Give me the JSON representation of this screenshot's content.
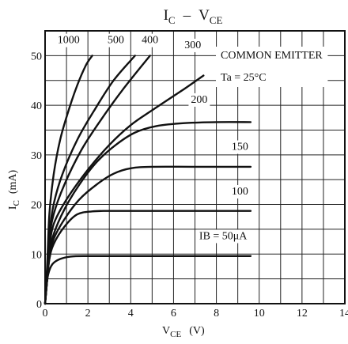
{
  "chart_data": {
    "type": "line",
    "title": "IC - VCE",
    "title_parts": {
      "i": "I",
      "c": "C",
      "dash": "–",
      "v": "V",
      "ce": "CE"
    },
    "xlabel": {
      "main": "V",
      "sub": "CE",
      "unit": "(V)"
    },
    "ylabel": {
      "main": "I",
      "sub": "C",
      "unit": "(mA)"
    },
    "xlim": [
      0,
      14
    ],
    "ylim": [
      0,
      55
    ],
    "x_ticks": [
      0,
      2,
      4,
      6,
      8,
      10,
      12,
      14
    ],
    "y_ticks": [
      0,
      10,
      20,
      30,
      40,
      50
    ],
    "x_tick_labels": [
      "0",
      "2",
      "4",
      "6",
      "8",
      "10",
      "12",
      "14"
    ],
    "y_tick_labels": [
      "0",
      "10",
      "20",
      "30",
      "40",
      "50"
    ],
    "grid": true,
    "annotations": {
      "line1": "COMMON EMITTER",
      "line2": "Ta = 25°C"
    },
    "series": [
      {
        "name": "1000",
        "label": "1000",
        "points": [
          [
            0,
            0
          ],
          [
            0.1,
            8
          ],
          [
            0.2,
            18
          ],
          [
            0.4,
            26
          ],
          [
            0.7,
            33
          ],
          [
            1.1,
            39
          ],
          [
            1.5,
            44
          ],
          [
            1.9,
            48
          ],
          [
            2.2,
            50
          ]
        ]
      },
      {
        "name": "500",
        "label": "500",
        "points": [
          [
            0,
            0
          ],
          [
            0.1,
            6
          ],
          [
            0.2,
            14
          ],
          [
            0.4,
            20
          ],
          [
            0.8,
            26
          ],
          [
            1.5,
            33
          ],
          [
            2.3,
            39
          ],
          [
            3.2,
            45
          ],
          [
            4.2,
            50
          ]
        ]
      },
      {
        "name": "400",
        "label": "400",
        "points": [
          [
            0,
            0
          ],
          [
            0.1,
            6
          ],
          [
            0.2,
            13
          ],
          [
            0.4,
            18
          ],
          [
            0.9,
            24
          ],
          [
            1.7,
            31
          ],
          [
            2.6,
            37
          ],
          [
            3.6,
            43
          ],
          [
            4.9,
            50
          ]
        ]
      },
      {
        "name": "300",
        "label": "300",
        "points": [
          [
            0,
            0
          ],
          [
            0.1,
            5
          ],
          [
            0.2,
            11
          ],
          [
            0.4,
            16
          ],
          [
            1.0,
            21
          ],
          [
            2.0,
            27
          ],
          [
            3.0,
            32
          ],
          [
            4.0,
            36
          ],
          [
            5.0,
            39
          ],
          [
            6.4,
            43
          ],
          [
            7.4,
            46
          ]
        ]
      },
      {
        "name": "200",
        "label": "200",
        "points": [
          [
            0,
            0
          ],
          [
            0.1,
            5
          ],
          [
            0.2,
            10
          ],
          [
            0.4,
            14
          ],
          [
            0.9,
            19
          ],
          [
            1.6,
            24
          ],
          [
            2.4,
            28.5
          ],
          [
            3.3,
            32
          ],
          [
            4.2,
            34.5
          ],
          [
            5.2,
            35.8
          ],
          [
            6.5,
            36.4
          ],
          [
            8,
            36.6
          ],
          [
            9.6,
            36.6
          ]
        ]
      },
      {
        "name": "150",
        "label": "150",
        "points": [
          [
            0,
            0
          ],
          [
            0.1,
            5
          ],
          [
            0.2,
            9
          ],
          [
            0.4,
            13
          ],
          [
            0.9,
            17
          ],
          [
            1.6,
            21
          ],
          [
            2.4,
            24
          ],
          [
            3.2,
            26.2
          ],
          [
            4.0,
            27.3
          ],
          [
            5.0,
            27.6
          ],
          [
            7,
            27.6
          ],
          [
            9.6,
            27.6
          ]
        ]
      },
      {
        "name": "100",
        "label": "100",
        "points": [
          [
            0,
            0
          ],
          [
            0.1,
            5
          ],
          [
            0.2,
            9
          ],
          [
            0.4,
            12
          ],
          [
            0.9,
            15.5
          ],
          [
            1.5,
            18
          ],
          [
            2.2,
            18.6
          ],
          [
            3,
            18.7
          ],
          [
            5,
            18.7
          ],
          [
            9.6,
            18.7
          ]
        ]
      },
      {
        "name": "50",
        "label": "IB = 50μA",
        "points": [
          [
            0,
            0
          ],
          [
            0.05,
            3
          ],
          [
            0.15,
            6
          ],
          [
            0.35,
            8
          ],
          [
            0.7,
            9
          ],
          [
            1.2,
            9.5
          ],
          [
            2,
            9.6
          ],
          [
            4,
            9.6
          ],
          [
            9.6,
            9.6
          ]
        ]
      }
    ]
  }
}
